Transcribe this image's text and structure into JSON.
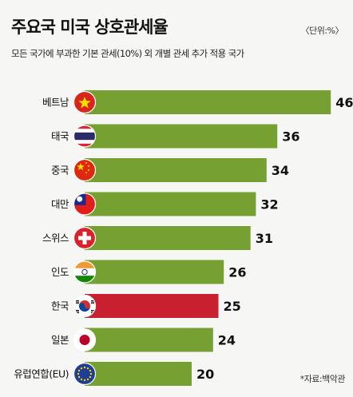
{
  "title": "주요국 미국 상호관세율",
  "unit": "〈단위:%〉",
  "subtitle": "모든 국가에 부과한 기본 관세(10%) 외 개별 관세 추가 적용 국가",
  "source": "*자료:백악관",
  "colors": {
    "bar": "#76a132",
    "highlight": "#c8202f"
  },
  "chart_data": {
    "type": "bar",
    "orientation": "horizontal",
    "categories": [
      "베트남",
      "태국",
      "중국",
      "대만",
      "스위스",
      "인도",
      "한국",
      "일본",
      "유럽연합(EU)"
    ],
    "values": [
      46,
      36,
      34,
      32,
      31,
      26,
      25,
      24,
      20
    ],
    "flags": [
      "vietnam-flag-icon",
      "thailand-flag-icon",
      "china-flag-icon",
      "taiwan-flag-icon",
      "switzerland-flag-icon",
      "india-flag-icon",
      "korea-flag-icon",
      "japan-flag-icon",
      "eu-flag-icon"
    ],
    "highlight": "한국",
    "xlim": [
      0,
      46
    ],
    "title": "주요국 미국 상호관세율",
    "xlabel": "",
    "ylabel": "",
    "grid": false,
    "legend": "none"
  }
}
